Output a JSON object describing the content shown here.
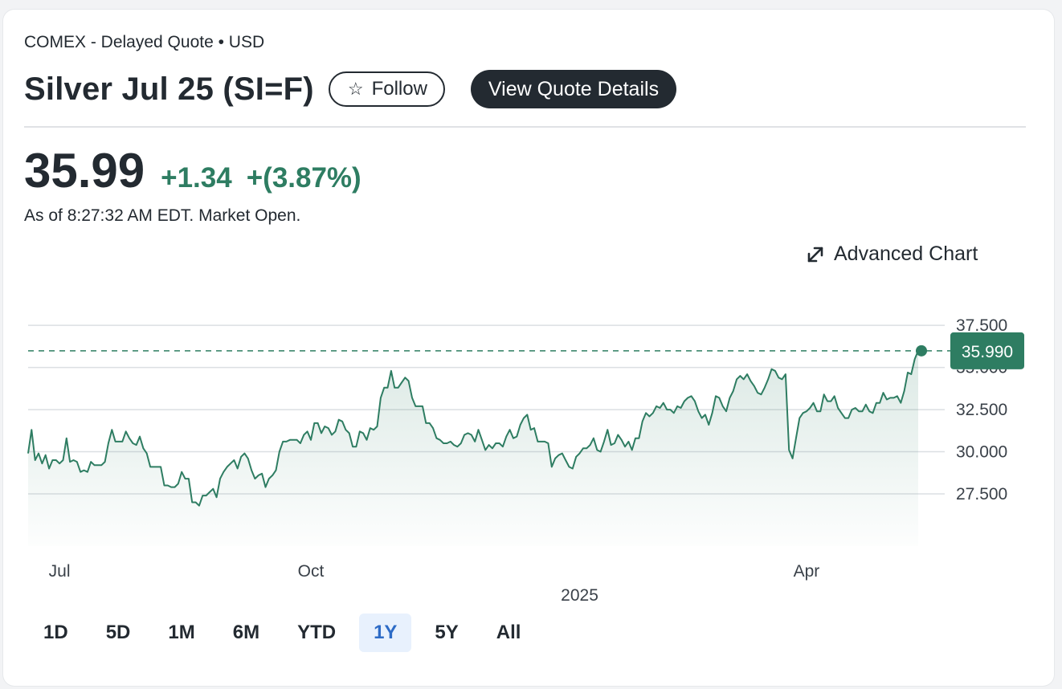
{
  "header": {
    "exchange": "COMEX - Delayed Quote • USD",
    "title": "Silver Jul 25 (SI=F)",
    "follow_label": "Follow",
    "view_details_label": "View Quote Details"
  },
  "quote": {
    "price": "35.99",
    "change": "+1.34",
    "change_pct": "+(3.87%)",
    "as_of": "As of 8:27:32 AM EDT. Market Open."
  },
  "advanced_chart_label": "Advanced Chart",
  "ranges": [
    "1D",
    "5D",
    "1M",
    "6M",
    "YTD",
    "1Y",
    "5Y",
    "All"
  ],
  "active_range": "1Y",
  "colors": {
    "accent": "#2e7d62",
    "text": "#232a31",
    "active_range_bg": "#e8f1fd",
    "active_range_text": "#2d6bc6"
  },
  "icons": {
    "follow": "star-icon",
    "advanced_chart": "expand-arrows-icon"
  },
  "chart_data": {
    "type": "area",
    "y_ticks": [
      "37.500",
      "35.000",
      "32.500",
      "30.000",
      "27.500"
    ],
    "y_tick_values": [
      37.5,
      35.0,
      32.5,
      30.0,
      27.5
    ],
    "ylim": [
      24.4,
      38.7
    ],
    "x_labels": [
      "Jul",
      "Oct",
      "Apr"
    ],
    "x_label_index": [
      9,
      81,
      223
    ],
    "year_label": "2025",
    "year_label_index": 158,
    "last_price_label": "35.990",
    "last_price": 35.99,
    "series": [
      {
        "name": "Silver Jul 25 (SI=F)",
        "values": [
          29.9,
          31.3,
          29.5,
          29.9,
          29.3,
          29.8,
          29.0,
          29.5,
          29.5,
          29.3,
          29.5,
          30.8,
          29.4,
          29.5,
          29.4,
          28.8,
          28.9,
          28.8,
          29.4,
          29.2,
          29.2,
          29.2,
          29.4,
          30.5,
          31.3,
          30.6,
          30.6,
          30.6,
          31.2,
          30.8,
          30.5,
          30.4,
          30.9,
          30.2,
          29.9,
          29.1,
          29.1,
          29.1,
          29.1,
          28.0,
          28.0,
          27.9,
          27.9,
          28.1,
          28.8,
          28.4,
          28.4,
          27.0,
          27.0,
          26.8,
          27.4,
          27.4,
          27.6,
          27.8,
          27.3,
          28.4,
          28.8,
          29.1,
          29.3,
          29.5,
          29.0,
          29.7,
          29.9,
          29.6,
          28.9,
          28.4,
          28.6,
          28.7,
          27.9,
          28.4,
          28.6,
          28.9,
          30.0,
          30.6,
          30.6,
          30.7,
          30.7,
          30.7,
          30.5,
          31.0,
          31.2,
          30.7,
          31.7,
          31.7,
          31.1,
          31.5,
          31.4,
          31.0,
          31.2,
          31.9,
          31.8,
          31.3,
          31.1,
          30.3,
          30.3,
          31.2,
          31.1,
          30.7,
          31.4,
          31.3,
          31.5,
          33.2,
          33.8,
          33.8,
          34.8,
          33.8,
          33.8,
          34.1,
          34.4,
          34.2,
          33.2,
          32.7,
          32.7,
          32.7,
          31.7,
          31.7,
          31.4,
          30.8,
          30.7,
          30.5,
          30.5,
          30.6,
          30.4,
          30.3,
          30.5,
          31.0,
          31.1,
          31.0,
          30.6,
          31.3,
          30.7,
          30.1,
          30.4,
          30.2,
          30.5,
          30.5,
          30.3,
          30.9,
          31.3,
          30.8,
          30.9,
          31.6,
          32.0,
          32.2,
          31.3,
          31.4,
          30.6,
          30.6,
          30.6,
          30.5,
          29.1,
          29.6,
          29.8,
          29.9,
          29.5,
          29.1,
          29.0,
          29.7,
          29.9,
          30.2,
          30.2,
          30.4,
          30.8,
          30.1,
          30.0,
          30.6,
          31.3,
          30.4,
          30.5,
          31.0,
          30.7,
          30.3,
          30.6,
          30.1,
          30.8,
          30.8,
          31.8,
          32.3,
          32.1,
          32.3,
          32.7,
          32.6,
          32.9,
          32.5,
          32.5,
          32.3,
          32.7,
          32.6,
          33.0,
          33.2,
          33.3,
          33.0,
          32.4,
          32.0,
          32.2,
          31.6,
          32.3,
          33.3,
          33.2,
          32.7,
          32.4,
          33.2,
          33.6,
          34.3,
          34.5,
          34.3,
          34.6,
          34.2,
          33.9,
          33.5,
          33.4,
          33.8,
          34.3,
          34.9,
          34.8,
          34.4,
          34.3,
          34.6,
          30.1,
          29.6,
          30.8,
          32.0,
          32.3,
          32.4,
          32.6,
          32.9,
          32.4,
          32.4,
          33.4,
          33.0,
          33.0,
          33.3,
          32.6,
          32.3,
          32.0,
          32.0,
          32.5,
          32.6,
          32.4,
          32.4,
          32.8,
          32.4,
          32.3,
          32.9,
          32.9,
          33.5,
          33.1,
          33.2,
          33.2,
          33.3,
          32.9,
          33.6,
          34.7,
          34.6,
          35.5,
          36.0
        ]
      }
    ]
  }
}
